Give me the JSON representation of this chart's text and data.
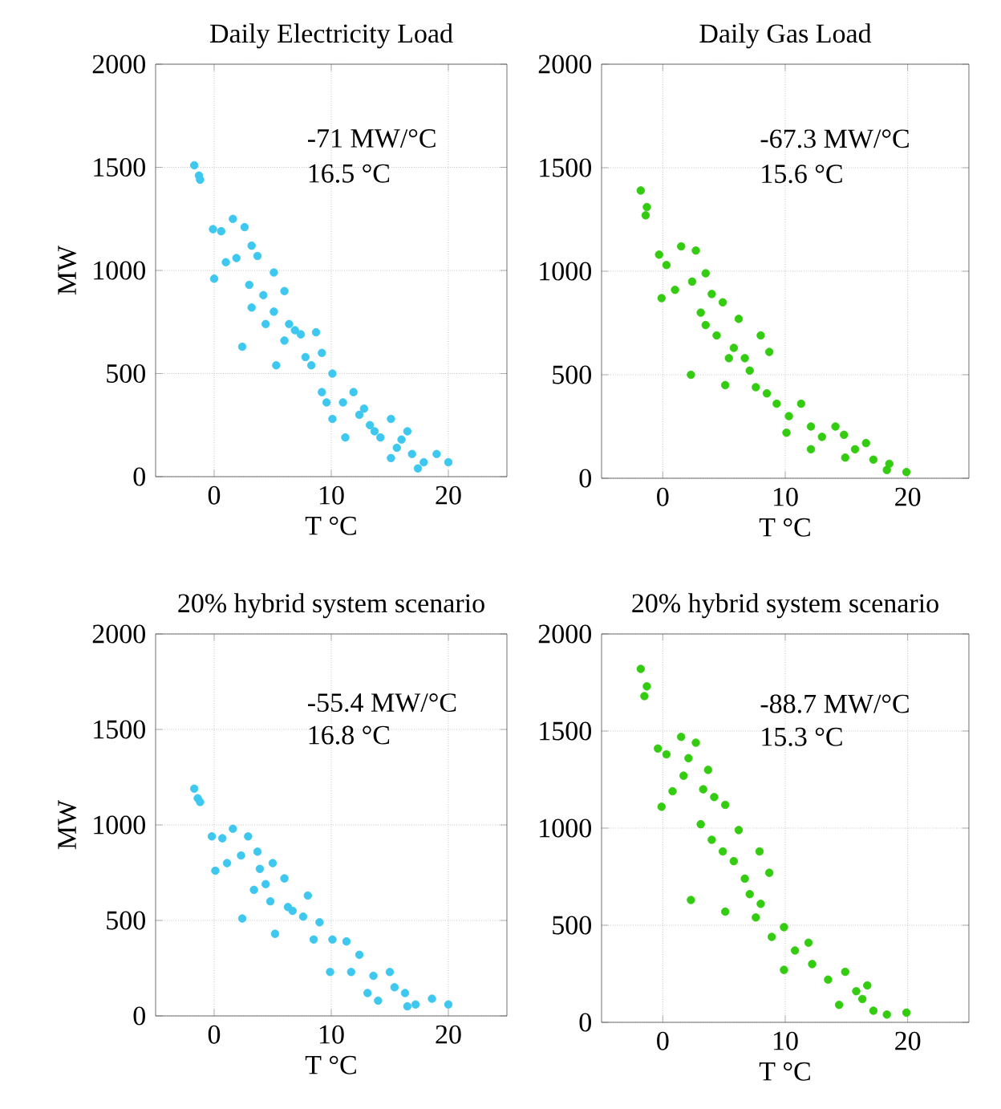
{
  "chart_data": [
    {
      "type": "scatter",
      "title": "Daily Electricity Load",
      "xlabel": "T °C",
      "ylabel": "MW",
      "annotations": [
        "-71 MW/°C",
        "16.5 °C"
      ],
      "color": "#3ec8f0",
      "marker": "circle",
      "grid": true,
      "xlim": [
        -5,
        25
      ],
      "ylim": [
        0,
        2000
      ],
      "xticks": [
        0,
        10,
        20
      ],
      "yticks": [
        0,
        500,
        1000,
        1500,
        2000
      ],
      "x": [
        -1.7,
        -1.3,
        -1.2,
        -0.1,
        0.6,
        1.6,
        2.6,
        0,
        1,
        1.9,
        3.2,
        3.7,
        5.1,
        3,
        4.2,
        6,
        5.1,
        2.4,
        5.3,
        6.4,
        7.4,
        8.7,
        9.2,
        7.8,
        10.1,
        9.2,
        11,
        11.9,
        12.8,
        10.1,
        11.2,
        13.3,
        14.2,
        15.1,
        15.6,
        16.5,
        16.9,
        17.9,
        19,
        20,
        17.4,
        3.2,
        4.4,
        6,
        6.9,
        8.3,
        9.6,
        12.4,
        13.7,
        16,
        15.1
      ],
      "values": [
        1510,
        1460,
        1440,
        1200,
        1190,
        1250,
        1210,
        960,
        1040,
        1060,
        1120,
        1070,
        990,
        930,
        880,
        900,
        800,
        630,
        540,
        740,
        690,
        700,
        600,
        580,
        500,
        410,
        360,
        410,
        330,
        280,
        190,
        250,
        190,
        280,
        140,
        220,
        110,
        70,
        110,
        70,
        40,
        820,
        740,
        660,
        710,
        540,
        360,
        300,
        220,
        180,
        90
      ]
    },
    {
      "type": "scatter",
      "title": "Daily Gas Load",
      "xlabel": "T °C",
      "annotations": [
        "-67.3 MW/°C",
        "15.6 °C"
      ],
      "color": "#33cc11",
      "marker": "circle",
      "grid": true,
      "xlim": [
        -5,
        25
      ],
      "ylim": [
        0,
        2000
      ],
      "xticks": [
        0,
        10,
        20
      ],
      "yticks": [
        0,
        500,
        1000,
        1500,
        2000
      ],
      "x": [
        -1.8,
        -1.3,
        -1.4,
        -0.3,
        0.3,
        1.5,
        2.7,
        -0.1,
        1,
        2.4,
        3.5,
        4,
        3.1,
        4.9,
        6.2,
        4.4,
        5.8,
        2.3,
        5.1,
        6.7,
        8,
        7.1,
        8.7,
        7.6,
        9.3,
        10.3,
        11.3,
        10.1,
        12.1,
        13,
        14.8,
        15.7,
        16.6,
        17.2,
        18.3,
        19.9,
        18.5,
        14.9,
        12.1,
        3.5,
        5.4,
        8.5,
        14.1
      ],
      "values": [
        1390,
        1310,
        1270,
        1080,
        1030,
        1120,
        1100,
        870,
        910,
        950,
        990,
        890,
        800,
        850,
        770,
        690,
        630,
        500,
        450,
        580,
        690,
        520,
        610,
        440,
        360,
        300,
        360,
        220,
        250,
        200,
        210,
        140,
        170,
        90,
        40,
        30,
        70,
        100,
        140,
        740,
        580,
        410,
        250
      ]
    },
    {
      "type": "scatter",
      "title": "20% hybrid system scenario",
      "xlabel": "T °C",
      "ylabel": "MW",
      "annotations": [
        "-55.4 MW/°C",
        "16.8 °C"
      ],
      "color": "#3ec8f0",
      "marker": "circle",
      "grid": true,
      "xlim": [
        -5,
        25
      ],
      "ylim": [
        0,
        2000
      ],
      "xticks": [
        0,
        10,
        20
      ],
      "yticks": [
        0,
        500,
        1000,
        1500,
        2000
      ],
      "x": [
        -1.7,
        -1.4,
        -1.2,
        -0.2,
        0.7,
        1.6,
        2.9,
        0.1,
        1.1,
        2.3,
        3.7,
        3.9,
        5,
        3.4,
        4.8,
        6,
        2.4,
        5.2,
        6.3,
        8,
        7.6,
        9,
        10.1,
        11.3,
        12.4,
        9.9,
        11.7,
        13.6,
        15,
        15.4,
        16.3,
        14,
        17.2,
        18.6,
        20,
        16.5,
        4.4,
        6.7,
        8.5,
        13.1
      ],
      "values": [
        1190,
        1140,
        1120,
        940,
        930,
        980,
        940,
        760,
        800,
        840,
        860,
        770,
        800,
        660,
        600,
        720,
        510,
        430,
        570,
        630,
        520,
        490,
        400,
        390,
        320,
        230,
        230,
        210,
        230,
        150,
        120,
        80,
        60,
        90,
        60,
        50,
        690,
        550,
        400,
        120
      ]
    },
    {
      "type": "scatter",
      "title": "20% hybrid system scenario",
      "xlabel": "T °C",
      "annotations": [
        "-88.7 MW/°C",
        "15.3 °C"
      ],
      "color": "#33cc11",
      "marker": "circle",
      "grid": true,
      "xlim": [
        -5,
        25
      ],
      "ylim": [
        0,
        2000
      ],
      "xticks": [
        0,
        10,
        20
      ],
      "yticks": [
        0,
        500,
        1000,
        1500,
        2000
      ],
      "x": [
        -1.8,
        -1.3,
        -1.5,
        -0.4,
        0.3,
        1.5,
        2.7,
        -0.1,
        0.8,
        1.7,
        2.1,
        3.3,
        3.7,
        4.2,
        5.1,
        3.1,
        4,
        4.9,
        6.2,
        5.8,
        7.9,
        2.3,
        5.1,
        7.1,
        8,
        8.7,
        7.6,
        8.9,
        9.9,
        10.8,
        11.9,
        9.9,
        12.2,
        13.5,
        14.9,
        15.8,
        16.7,
        14.4,
        17.2,
        18.3,
        19.9,
        16.3,
        6.7
      ],
      "values": [
        1820,
        1730,
        1680,
        1410,
        1380,
        1470,
        1440,
        1110,
        1190,
        1270,
        1360,
        1200,
        1300,
        1160,
        1120,
        1020,
        940,
        880,
        990,
        830,
        880,
        630,
        570,
        660,
        610,
        770,
        540,
        440,
        490,
        370,
        410,
        270,
        300,
        220,
        260,
        160,
        190,
        90,
        60,
        40,
        50,
        120,
        740
      ]
    }
  ]
}
